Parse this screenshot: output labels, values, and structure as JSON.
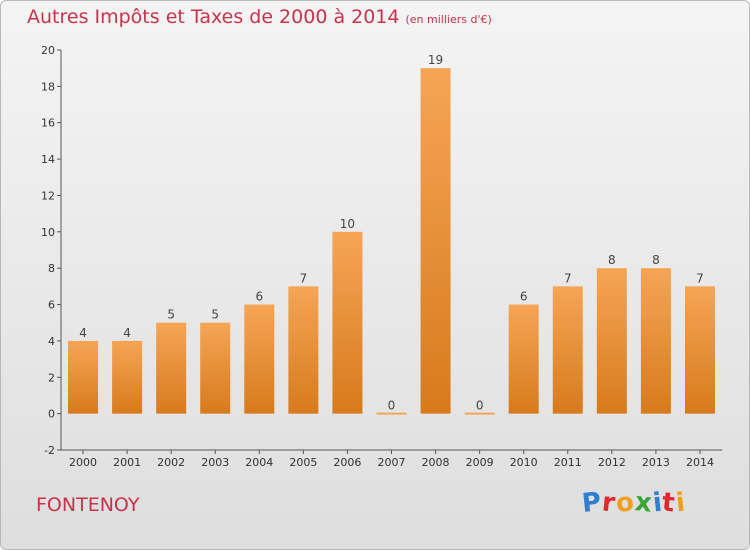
{
  "title": "Autres Impôts et Taxes de 2000 à 2014",
  "subtitle": "(en milliers d'€)",
  "commune": "FONTENOY",
  "logo": [
    "P",
    "r",
    "o",
    "x",
    "i",
    "t",
    "i"
  ],
  "logo_colors": [
    "#2f7fd0",
    "#e0282e",
    "#f0a01e",
    "#37a637",
    "#2f7fd0",
    "#e0282e",
    "#f0a01e"
  ],
  "colors": {
    "bar_top": "#f5a556",
    "bar_bottom": "#d77a1c",
    "title": "#c8324a"
  },
  "chart_data": {
    "type": "bar",
    "title": "Autres Impôts et Taxes de 2000 à 2014",
    "subtitle": "(en milliers d'€)",
    "xlabel": "",
    "ylabel": "",
    "categories": [
      "2000",
      "2001",
      "2002",
      "2003",
      "2004",
      "2005",
      "2006",
      "2007",
      "2008",
      "2009",
      "2010",
      "2011",
      "2012",
      "2013",
      "2014"
    ],
    "values": [
      4,
      4,
      5,
      5,
      6,
      7,
      10,
      0,
      19,
      0,
      6,
      7,
      8,
      8,
      7
    ],
    "ylim": [
      -2,
      20
    ],
    "yticks": [
      -2,
      0,
      2,
      4,
      6,
      8,
      10,
      12,
      14,
      16,
      18,
      20
    ],
    "grid": false,
    "legend": "none"
  }
}
